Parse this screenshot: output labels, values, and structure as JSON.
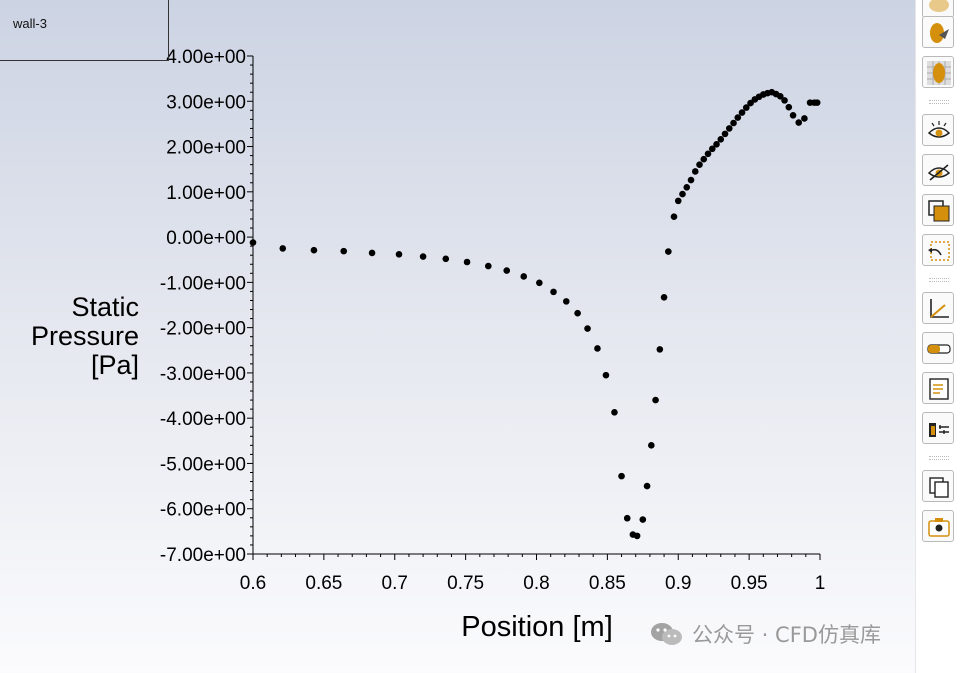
{
  "legend": {
    "label": "wall-3"
  },
  "watermark": {
    "text": "公众号 · CFD仿真库",
    "icon": "wechat-icon"
  },
  "toolbar": {
    "buttons": [
      {
        "name": "shade-toggle-icon"
      },
      {
        "name": "hemisphere-icon"
      },
      {
        "name": "mesh-surface-icon"
      },
      {
        "name": "show-icon"
      },
      {
        "name": "hide-icon"
      },
      {
        "name": "layer-fill-icon"
      },
      {
        "name": "undo-selection-icon"
      },
      {
        "name": "axes-icon"
      },
      {
        "name": "colormap-icon"
      },
      {
        "name": "report-icon"
      },
      {
        "name": "properties-icon"
      },
      {
        "name": "copy-icon"
      },
      {
        "name": "screenshot-icon"
      }
    ],
    "accent": "#d4900c"
  },
  "chart_data": {
    "type": "scatter",
    "title": "",
    "xlabel": "Position [m]",
    "ylabel_lines": [
      "Static",
      "Pressure",
      "[Pa]"
    ],
    "xlim": [
      0.6,
      1.0
    ],
    "ylim": [
      -7,
      4
    ],
    "x_ticks": [
      "0.6",
      "0.65",
      "0.7",
      "0.75",
      "0.8",
      "0.85",
      "0.9",
      "0.95",
      "1"
    ],
    "x_tick_values": [
      0.6,
      0.65,
      0.7,
      0.75,
      0.8,
      0.85,
      0.9,
      0.95,
      1.0
    ],
    "y_ticks": [
      "4.00e+00",
      "3.00e+00",
      "2.00e+00",
      "1.00e+00",
      "0.00e+00",
      "-1.00e+00",
      "-2.00e+00",
      "-3.00e+00",
      "-4.00e+00",
      "-5.00e+00",
      "-6.00e+00",
      "-7.00e+00"
    ],
    "y_tick_values": [
      4,
      3,
      2,
      1,
      0,
      -1,
      -2,
      -3,
      -4,
      -5,
      -6,
      -7
    ],
    "grid": false,
    "marker_color": "#000000",
    "series": [
      {
        "name": "wall-3",
        "x": [
          0.6,
          0.621,
          0.643,
          0.664,
          0.684,
          0.703,
          0.72,
          0.736,
          0.751,
          0.766,
          0.779,
          0.791,
          0.802,
          0.812,
          0.821,
          0.829,
          0.836,
          0.843,
          0.849,
          0.855,
          0.86,
          0.864,
          0.868,
          0.871,
          0.875,
          0.878,
          0.881,
          0.884,
          0.887,
          0.89,
          0.893,
          0.897,
          0.9,
          0.903,
          0.906,
          0.909,
          0.912,
          0.915,
          0.918,
          0.921,
          0.924,
          0.927,
          0.93,
          0.933,
          0.936,
          0.939,
          0.942,
          0.945,
          0.948,
          0.951,
          0.954,
          0.957,
          0.96,
          0.963,
          0.966,
          0.969,
          0.972,
          0.975,
          0.978,
          0.981,
          0.985,
          0.989,
          0.993,
          0.996,
          0.998
        ],
        "y": [
          -0.12,
          -0.25,
          -0.29,
          -0.31,
          -0.35,
          -0.38,
          -0.43,
          -0.48,
          -0.55,
          -0.64,
          -0.74,
          -0.87,
          -1.01,
          -1.21,
          -1.42,
          -1.68,
          -2.02,
          -2.46,
          -3.05,
          -3.87,
          -5.28,
          -6.21,
          -6.57,
          -6.6,
          -6.24,
          -5.5,
          -4.6,
          -3.6,
          -2.48,
          -1.33,
          -0.32,
          0.45,
          0.8,
          0.95,
          1.1,
          1.26,
          1.45,
          1.6,
          1.72,
          1.84,
          1.95,
          2.05,
          2.16,
          2.28,
          2.4,
          2.52,
          2.64,
          2.75,
          2.86,
          2.96,
          3.04,
          3.1,
          3.15,
          3.18,
          3.2,
          3.16,
          3.11,
          3.02,
          2.87,
          2.69,
          2.53,
          2.62,
          2.97,
          2.97,
          2.97
        ]
      }
    ]
  }
}
